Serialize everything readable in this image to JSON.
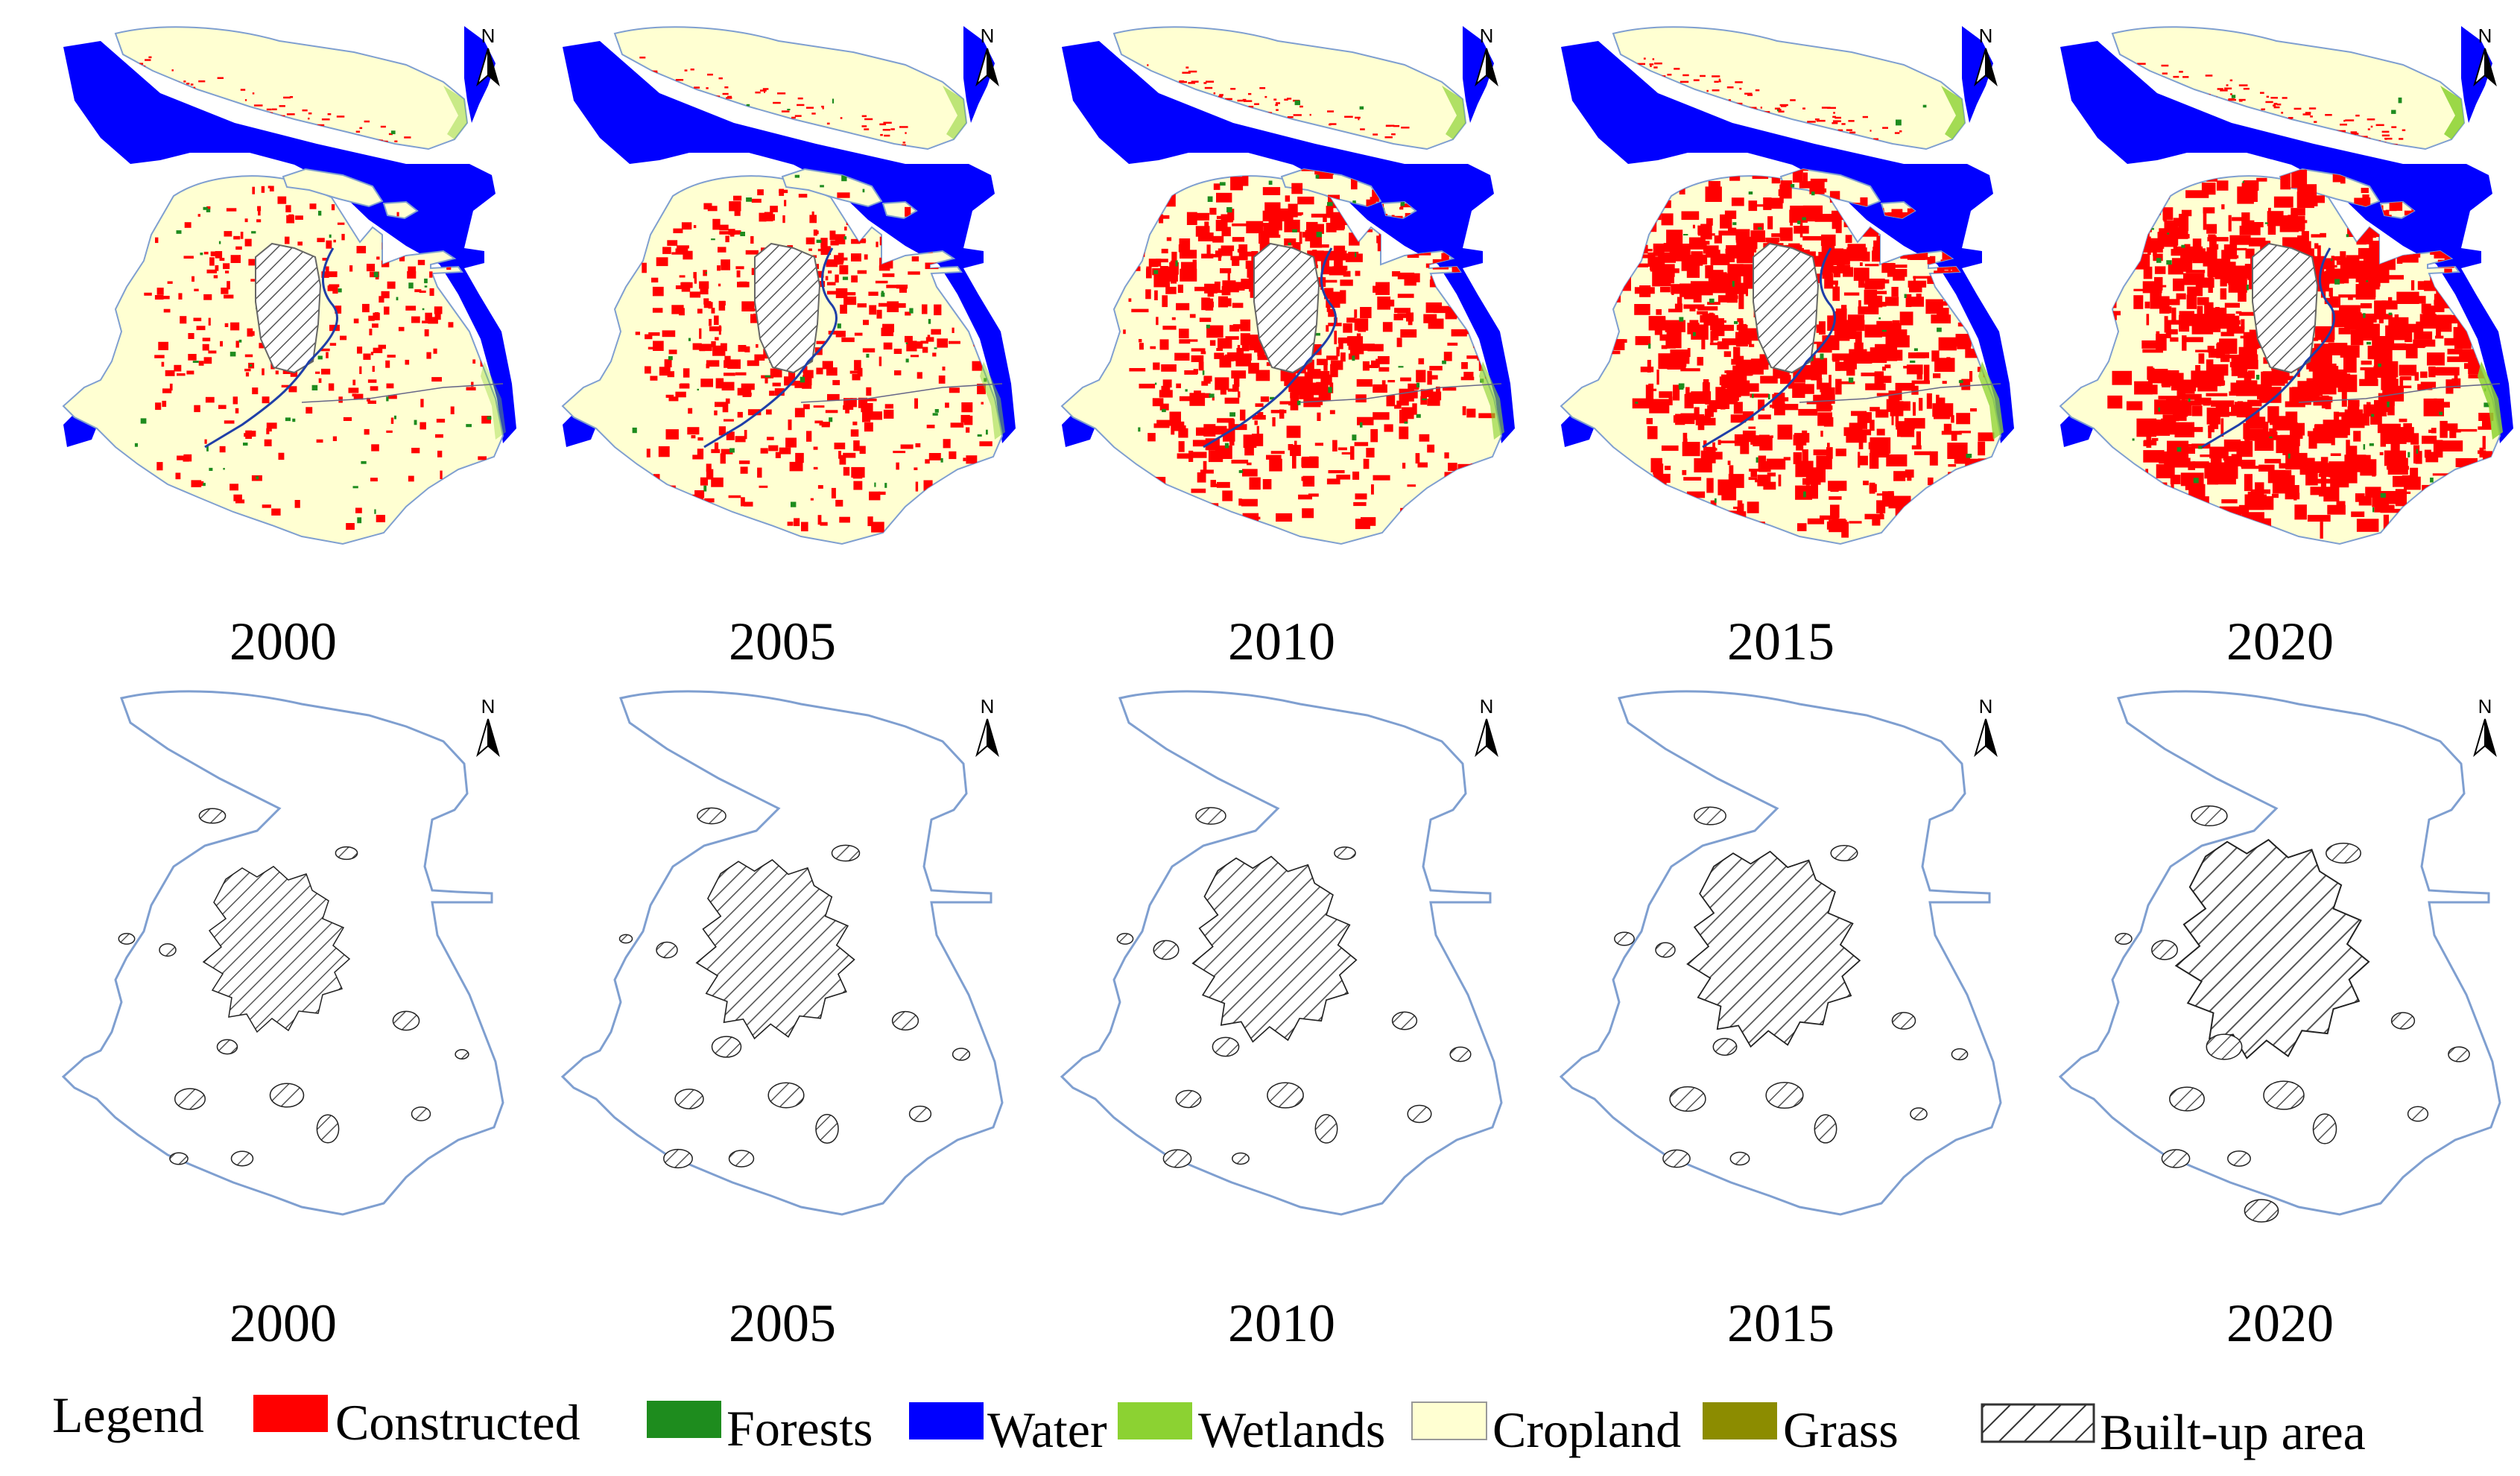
{
  "figure": {
    "top_row": {
      "kind": "land-use",
      "panels": [
        {
          "year": "2000",
          "constructed_level": 0.12
        },
        {
          "year": "2005",
          "constructed_level": 0.28
        },
        {
          "year": "2010",
          "constructed_level": 0.48
        },
        {
          "year": "2015",
          "constructed_level": 0.66
        },
        {
          "year": "2020",
          "constructed_level": 0.78
        }
      ]
    },
    "bottom_row": {
      "kind": "built-up-area",
      "panels": [
        {
          "year": "2000",
          "built_up_scale": 1.0
        },
        {
          "year": "2005",
          "built_up_scale": 1.08
        },
        {
          "year": "2010",
          "built_up_scale": 1.12
        },
        {
          "year": "2015",
          "built_up_scale": 1.18
        },
        {
          "year": "2020",
          "built_up_scale": 1.32
        }
      ]
    },
    "north_arrow": {
      "label": "N",
      "icon": "north-arrow-icon"
    },
    "legend": {
      "title": "Legend",
      "items": [
        {
          "label": "Constructed",
          "color": "#ff0000",
          "pattern": "solid"
        },
        {
          "label": "Forests",
          "color": "#1e8c1e",
          "pattern": "solid"
        },
        {
          "label": "Water",
          "color": "#0000ff",
          "pattern": "solid"
        },
        {
          "label": "Wetlands",
          "color": "#8cd232",
          "pattern": "solid"
        },
        {
          "label": "Cropland",
          "color": "#ffffd2",
          "pattern": "solid"
        },
        {
          "label": "Grass",
          "color": "#8c8c00",
          "pattern": "solid"
        },
        {
          "label": "Built-up area",
          "color": "#ffffff",
          "pattern": "hatch"
        }
      ]
    },
    "colors": {
      "boundary": "#7f9fd0",
      "river": "#1f3fa8",
      "hatch": "#555555"
    }
  }
}
